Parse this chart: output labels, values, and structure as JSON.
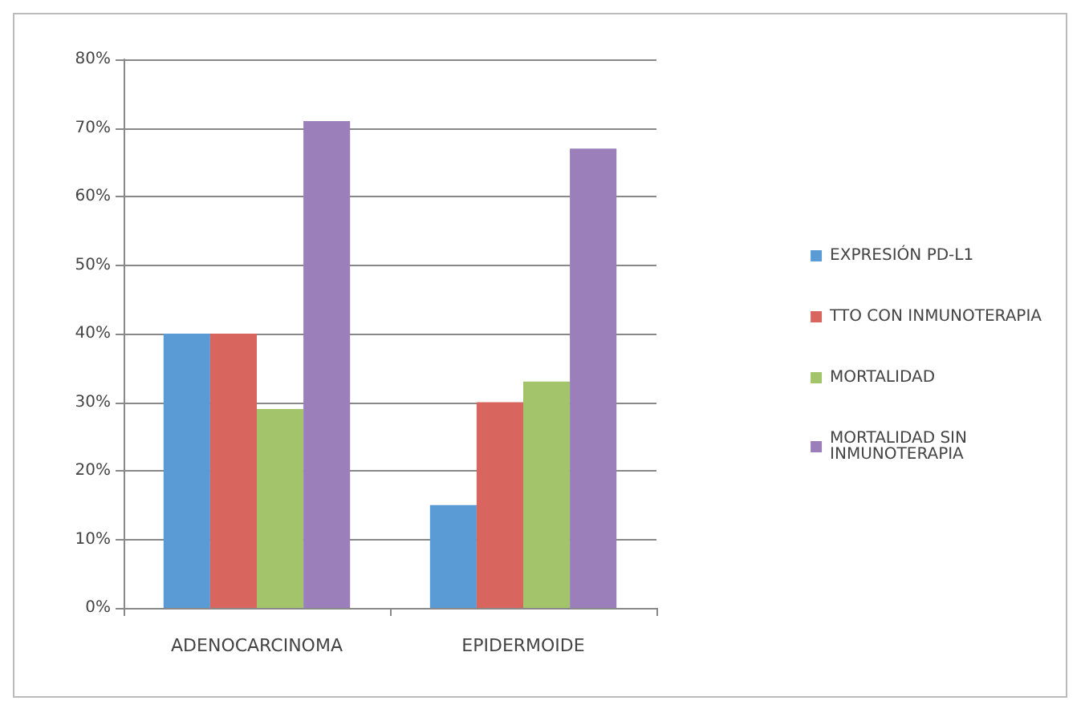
{
  "chart_data": {
    "type": "bar",
    "categories": [
      "ADENOCARCINOMA",
      "EPIDERMOIDE"
    ],
    "series": [
      {
        "name": "EXPRESIÓN PD-L1",
        "color": "#5b9bd5",
        "values": [
          40,
          15
        ]
      },
      {
        "name": "TTO CON INMUNOTERAPIA",
        "color": "#d9665e",
        "values": [
          40,
          30
        ]
      },
      {
        "name": "MORTALIDAD",
        "color": "#a3c46a",
        "values": [
          29,
          33
        ]
      },
      {
        "name": "MORTALIDAD SIN INMUNOTERAPIA",
        "color": "#9a7fba",
        "values": [
          71,
          67
        ]
      }
    ],
    "ylim": [
      0,
      80
    ],
    "yticks": [
      {
        "value": 0,
        "label": "0%"
      },
      {
        "value": 10,
        "label": "10%"
      },
      {
        "value": 20,
        "label": "20%"
      },
      {
        "value": 30,
        "label": "30%"
      },
      {
        "value": 40,
        "label": "40%"
      },
      {
        "value": 50,
        "label": "50%"
      },
      {
        "value": 60,
        "label": "60%"
      },
      {
        "value": 70,
        "label": "70%"
      },
      {
        "value": 80,
        "label": "80%"
      }
    ],
    "grid": "y",
    "legend": "right"
  }
}
